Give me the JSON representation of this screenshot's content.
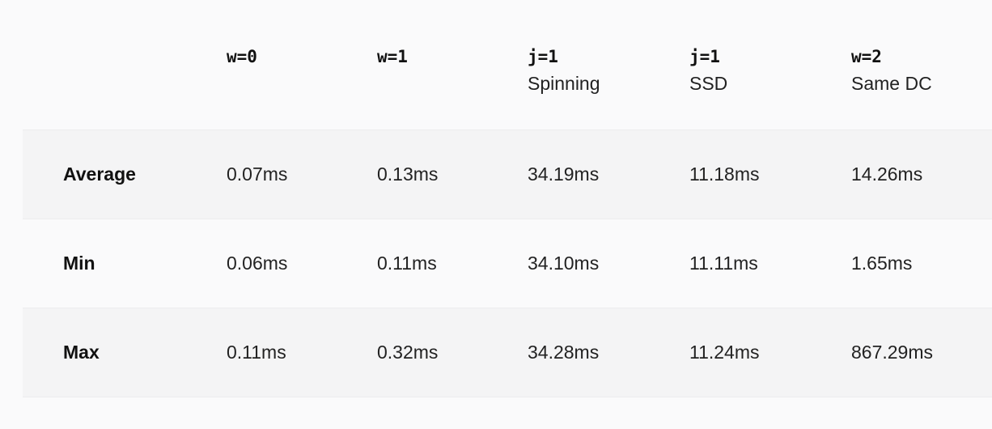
{
  "table": {
    "columns": [
      {
        "code": "w=0",
        "sub": ""
      },
      {
        "code": "w=1",
        "sub": ""
      },
      {
        "code": "j=1",
        "sub": "Spinning"
      },
      {
        "code": "j=1",
        "sub": "SSD"
      },
      {
        "code": "w=2",
        "sub": "Same DC"
      }
    ],
    "rows": [
      {
        "label": "Average",
        "values": [
          "0.07ms",
          "0.13ms",
          "34.19ms",
          "11.18ms",
          "14.26ms"
        ]
      },
      {
        "label": "Min",
        "values": [
          "0.06ms",
          "0.11ms",
          "34.10ms",
          "11.11ms",
          "1.65ms"
        ]
      },
      {
        "label": "Max",
        "values": [
          "0.11ms",
          "0.32ms",
          "34.28ms",
          "11.24ms",
          "867.29ms"
        ]
      }
    ]
  }
}
